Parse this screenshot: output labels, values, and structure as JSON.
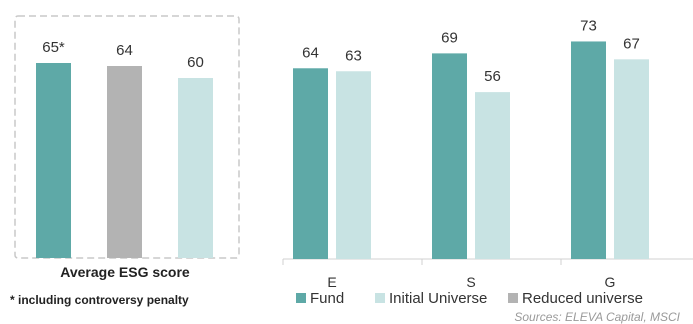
{
  "colors": {
    "fund": "#5ea9a7",
    "initial_universe": "#c8e3e3",
    "reduced_universe": "#b3b3b3",
    "box_border": "#c8c8c8",
    "axis": "#d0d0d0"
  },
  "chart_data": [
    {
      "type": "bar",
      "title": "Average ESG score",
      "categories": [
        "Fund",
        "Reduced universe",
        "Initial Universe"
      ],
      "values": [
        65,
        64,
        60
      ],
      "labels": [
        "65*",
        "64",
        "60"
      ],
      "ylim": [
        0,
        80
      ],
      "grid": false
    },
    {
      "type": "bar",
      "categories": [
        "E",
        "S",
        "G"
      ],
      "series": [
        {
          "name": "Fund",
          "values": [
            64,
            69,
            73
          ]
        },
        {
          "name": "Initial Universe",
          "values": [
            63,
            56,
            67
          ]
        }
      ],
      "ylim": [
        0,
        80
      ],
      "grid": false,
      "legend": {
        "position": "bottom",
        "entries": [
          "Fund",
          "Initial Universe",
          "Reduced universe"
        ]
      }
    }
  ],
  "footnote": "* including controversy penalty",
  "source": "Sources: ELEVA Capital, MSCI"
}
